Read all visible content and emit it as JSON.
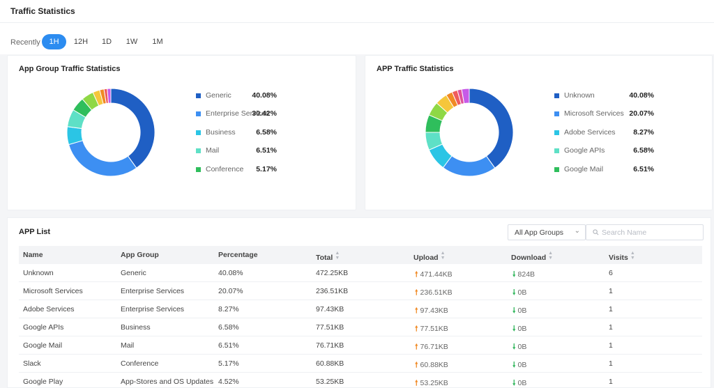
{
  "header": {
    "title": "Traffic Statistics"
  },
  "range": {
    "label": "Recently",
    "options": [
      "1H",
      "12H",
      "1D",
      "1W",
      "1M"
    ],
    "active": "1H"
  },
  "app_group_chart": {
    "title": "App Group Traffic Statistics",
    "chart_data": {
      "type": "pie",
      "slices": [
        {
          "name": "Generic",
          "value": 40.08,
          "color": "#1f5fc4"
        },
        {
          "name": "Enterprise Services",
          "value": 30.42,
          "color": "#3d8ff2"
        },
        {
          "name": "Business",
          "value": 6.58,
          "color": "#2bc5e5"
        },
        {
          "name": "Mail",
          "value": 6.51,
          "color": "#5ee0c6"
        },
        {
          "name": "Conference",
          "value": 5.17,
          "color": "#2fbe5c"
        },
        {
          "name": "",
          "value": 4.52,
          "color": "#8fd845"
        },
        {
          "name": "",
          "value": 2.6,
          "color": "#f5c63b"
        },
        {
          "name": "",
          "value": 1.6,
          "color": "#f08a24"
        },
        {
          "name": "",
          "value": 1.2,
          "color": "#ef5c5c"
        },
        {
          "name": "",
          "value": 1.32,
          "color": "#c65ae8"
        }
      ]
    },
    "legend": [
      {
        "name": "Generic",
        "pct": "40.08%",
        "color": "#1f5fc4"
      },
      {
        "name": "Enterprise Services",
        "pct": "30.42%",
        "color": "#3d8ff2"
      },
      {
        "name": "Business",
        "pct": "6.58%",
        "color": "#2bc5e5"
      },
      {
        "name": "Mail",
        "pct": "6.51%",
        "color": "#5ee0c6"
      },
      {
        "name": "Conference",
        "pct": "5.17%",
        "color": "#2fbe5c"
      }
    ]
  },
  "app_chart": {
    "title": "APP Traffic Statistics",
    "chart_data": {
      "type": "pie",
      "slices": [
        {
          "name": "Unknown",
          "value": 40.08,
          "color": "#1f5fc4"
        },
        {
          "name": "Microsoft Services",
          "value": 20.07,
          "color": "#3d8ff2"
        },
        {
          "name": "Adobe Services",
          "value": 8.27,
          "color": "#2bc5e5"
        },
        {
          "name": "Google APIs",
          "value": 6.58,
          "color": "#5ee0c6"
        },
        {
          "name": "Google Mail",
          "value": 6.51,
          "color": "#2fbe5c"
        },
        {
          "name": "",
          "value": 5.17,
          "color": "#8fd845"
        },
        {
          "name": "",
          "value": 4.52,
          "color": "#f5c63b"
        },
        {
          "name": "",
          "value": 2.4,
          "color": "#f08a24"
        },
        {
          "name": "",
          "value": 2.0,
          "color": "#ef5c5c"
        },
        {
          "name": "",
          "value": 1.6,
          "color": "#e0509a"
        },
        {
          "name": "",
          "value": 2.8,
          "color": "#c65ae8"
        }
      ]
    },
    "legend": [
      {
        "name": "Unknown",
        "pct": "40.08%",
        "color": "#1f5fc4"
      },
      {
        "name": "Microsoft Services",
        "pct": "20.07%",
        "color": "#3d8ff2"
      },
      {
        "name": "Adobe Services",
        "pct": "8.27%",
        "color": "#2bc5e5"
      },
      {
        "name": "Google APIs",
        "pct": "6.58%",
        "color": "#5ee0c6"
      },
      {
        "name": "Google Mail",
        "pct": "6.51%",
        "color": "#2fbe5c"
      }
    ]
  },
  "app_list": {
    "title": "APP List",
    "filter": {
      "value": "All App Groups"
    },
    "search": {
      "placeholder": "Search Name",
      "value": ""
    },
    "columns": [
      "Name",
      "App Group",
      "Percentage",
      "Total",
      "Upload",
      "Download",
      "Visits"
    ],
    "rows": [
      {
        "name": "Unknown",
        "group": "Generic",
        "pct": "40.08%",
        "total": "472.25KB",
        "upload": "471.44KB",
        "download": "824B",
        "visits": "6"
      },
      {
        "name": "Microsoft Services",
        "group": "Enterprise Services",
        "pct": "20.07%",
        "total": "236.51KB",
        "upload": "236.51KB",
        "download": "0B",
        "visits": "1"
      },
      {
        "name": "Adobe Services",
        "group": "Enterprise Services",
        "pct": "8.27%",
        "total": "97.43KB",
        "upload": "97.43KB",
        "download": "0B",
        "visits": "1"
      },
      {
        "name": "Google APIs",
        "group": "Business",
        "pct": "6.58%",
        "total": "77.51KB",
        "upload": "77.51KB",
        "download": "0B",
        "visits": "1"
      },
      {
        "name": "Google Mail",
        "group": "Mail",
        "pct": "6.51%",
        "total": "76.71KB",
        "upload": "76.71KB",
        "download": "0B",
        "visits": "1"
      },
      {
        "name": "Slack",
        "group": "Conference",
        "pct": "5.17%",
        "total": "60.88KB",
        "upload": "60.88KB",
        "download": "0B",
        "visits": "1"
      },
      {
        "name": "Google Play",
        "group": "App-Stores and OS Updates",
        "pct": "4.52%",
        "total": "53.25KB",
        "upload": "53.25KB",
        "download": "0B",
        "visits": "1"
      }
    ]
  }
}
